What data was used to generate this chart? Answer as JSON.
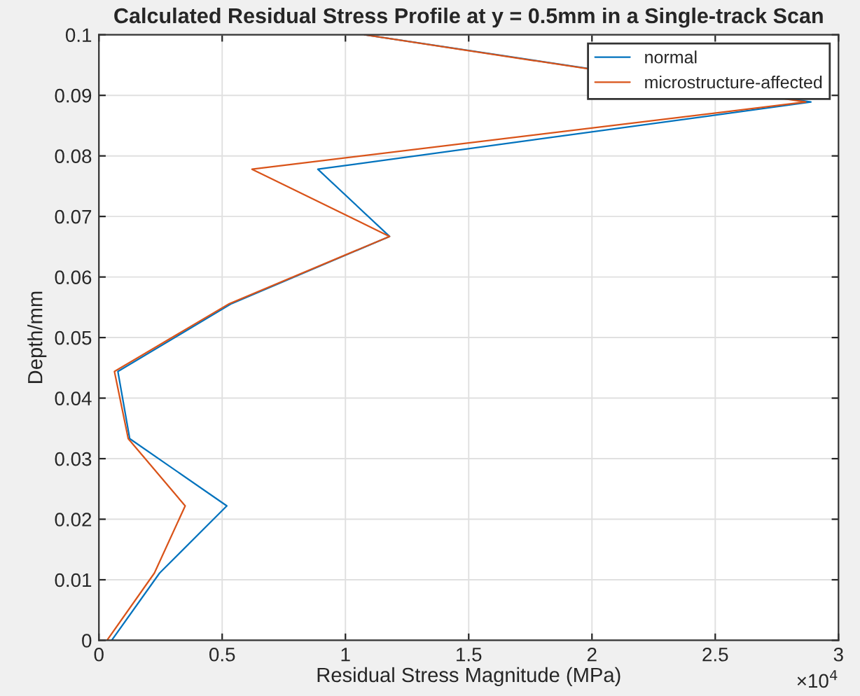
{
  "chart_data": {
    "type": "line",
    "title": "Calculated Residual Stress Profile at y = 0.5mm in a Single-track Scan",
    "xlabel": "Residual Stress Magnitude (MPa)",
    "ylabel": "Depth/mm",
    "annotations": [
      "×10$^{4}$"
    ],
    "series": [
      {
        "name": "normal",
        "color": "#0072bd",
        "x": [
          0.052,
          0.246,
          0.519,
          0.125,
          0.077,
          0.538,
          1.179,
          0.888,
          2.888,
          1.078
        ],
        "values": [
          0,
          0.0111,
          0.0222,
          0.0333,
          0.0444,
          0.0556,
          0.0667,
          0.0778,
          0.0889,
          0.1
        ]
      },
      {
        "name": "microstructure-affected",
        "color": "#d95319",
        "x": [
          0.033,
          0.225,
          0.35,
          0.119,
          0.063,
          0.529,
          1.179,
          0.621,
          2.867,
          1.078
        ],
        "values": [
          0,
          0.0111,
          0.0222,
          0.0333,
          0.0444,
          0.0556,
          0.0667,
          0.0778,
          0.0889,
          0.1
        ]
      }
    ],
    "xlim": [
      0,
      3
    ],
    "xticks": [
      0,
      0.5,
      1,
      1.5,
      2,
      2.5,
      3
    ],
    "ylim": [
      0,
      0.1
    ],
    "yticks": [
      0,
      0.01,
      0.02,
      0.03,
      0.04,
      0.05,
      0.06,
      0.07,
      0.08,
      0.09,
      0.1
    ],
    "grid": true,
    "legend": "top right"
  }
}
